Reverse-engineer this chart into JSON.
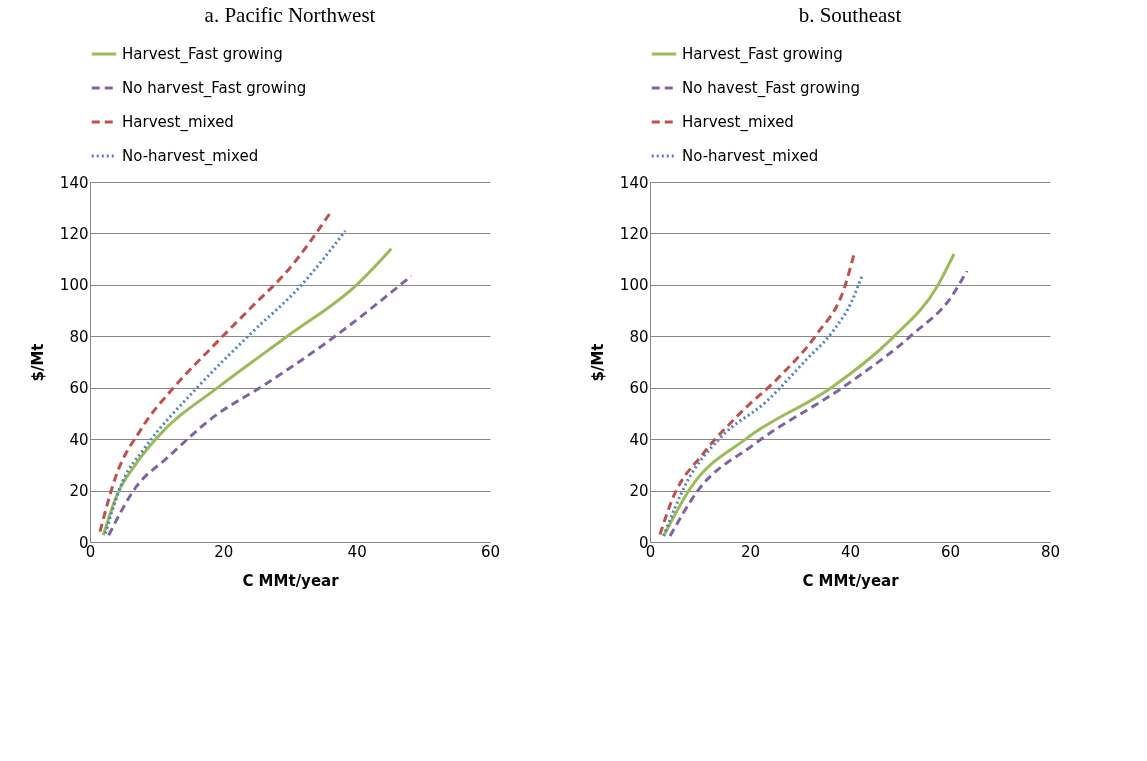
{
  "chart_data": [
    {
      "type": "line",
      "title": "a. Pacific Northwest",
      "xlabel": "C MMt/year",
      "ylabel": "$/Mt",
      "xlim": [
        0,
        60
      ],
      "xticks": [
        0,
        20,
        40,
        60
      ],
      "ylim": [
        0,
        140
      ],
      "yticks": [
        0,
        20,
        40,
        60,
        80,
        100,
        120,
        140
      ],
      "grid": "y",
      "legend": "top",
      "series": [
        {
          "name": "Harvest_Fast growing",
          "color": "#9bbb59",
          "line_style": "solid",
          "x": [
            2.0,
            4,
            6.8,
            10.2,
            19.4,
            29.6,
            40,
            45.2
          ],
          "values": [
            2.6,
            18,
            30,
            41,
            60.5,
            80,
            100,
            114
          ]
        },
        {
          "name": "No harvest_Fast growing",
          "color": "#8064a2",
          "line_style": "dashed",
          "x": [
            2.8,
            6.8,
            11.7,
            18.2,
            26.1,
            36.5,
            48.2
          ],
          "values": [
            2.6,
            21,
            33,
            48,
            61,
            79.5,
            103.5
          ]
        },
        {
          "name": "Harvest_mixed",
          "color": "#c0504d",
          "line_style": "dashed",
          "x": [
            1.5,
            3.8,
            7.7,
            12.7,
            18.4,
            24.1,
            29.8,
            36.3
          ],
          "values": [
            4,
            25,
            44,
            60.5,
            76,
            91,
            106,
            129
          ]
        },
        {
          "name": "No-harvest_mixed",
          "color": "#4f81bd",
          "line_style": "dotted",
          "x": [
            2.3,
            4.8,
            8.2,
            15.7,
            24.1,
            31.6,
            38.3
          ],
          "values": [
            3.3,
            23,
            36.5,
            59,
            81,
            99.6,
            121
          ]
        }
      ]
    },
    {
      "type": "line",
      "title": "b. Southeast",
      "xlabel": "C MMt/year",
      "ylabel": "$/Mt",
      "xlim": [
        0,
        80
      ],
      "xticks": [
        0,
        20,
        40,
        60,
        80
      ],
      "ylim": [
        0,
        140
      ],
      "yticks": [
        0,
        20,
        40,
        60,
        80,
        100,
        120,
        140
      ],
      "grid": "y",
      "legend": "top",
      "series": [
        {
          "name": "Harvest_Fast growing",
          "color": "#9bbb59",
          "line_style": "solid",
          "x": [
            2.8,
            8.1,
            19.4,
            36.6,
            48.5,
            57.5,
            60.8
          ],
          "values": [
            2.6,
            21,
            40.4,
            60.5,
            79.4,
            99.6,
            112
          ]
        },
        {
          "name": "No havest_Fast growing",
          "color": "#8064a2",
          "line_style": "dashed",
          "x": [
            4,
            9.4,
            20.7,
            39.2,
            52.5,
            60.4,
            63.4
          ],
          "values": [
            2.3,
            19.5,
            37.8,
            61,
            80.7,
            95.7,
            105.5
          ]
        },
        {
          "name": "Harvest_mixed",
          "color": "#c0504d",
          "line_style": "dashed",
          "x": [
            2,
            4.4,
            10.7,
            18,
            26,
            33.3,
            38.9,
            40.9
          ],
          "values": [
            2.9,
            16.3,
            34.5,
            50,
            64.5,
            80.7,
            99,
            112.6
          ]
        },
        {
          "name": "No-harvest_mixed",
          "color": "#4f81bd",
          "line_style": "dotted",
          "x": [
            2.7,
            7.4,
            14,
            23.3,
            31.3,
            36.6,
            40.2,
            42.5
          ],
          "values": [
            2.3,
            23.4,
            40.4,
            54.7,
            71,
            82,
            93,
            104
          ]
        }
      ]
    }
  ]
}
